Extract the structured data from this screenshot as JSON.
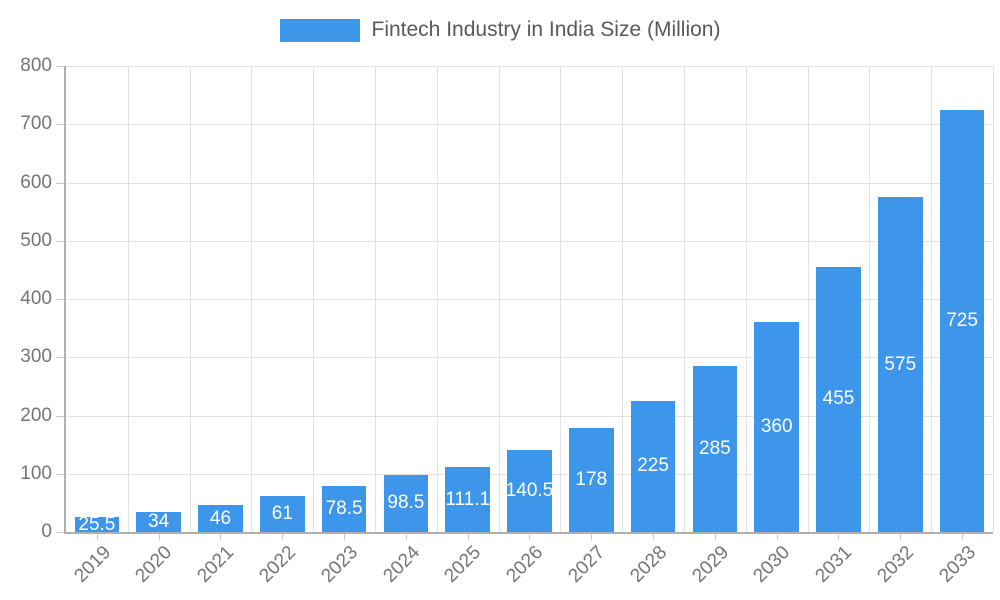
{
  "legend": {
    "label": "Fintech Industry in India Size (Million)"
  },
  "colors": {
    "bar": "#3d96e9",
    "grid": "#e2e2e2",
    "axis_line": "#b0b0b0",
    "tick": "#c9c9c9",
    "axis_text": "#757575",
    "legend_text": "#58595b",
    "value_label": "#ffffff"
  },
  "chart_data": {
    "type": "bar",
    "title": "",
    "xlabel": "",
    "ylabel": "",
    "categories": [
      "2019",
      "2020",
      "2021",
      "2022",
      "2023",
      "2024",
      "2025",
      "2026",
      "2027",
      "2028",
      "2029",
      "2030",
      "2031",
      "2032",
      "2033"
    ],
    "series": [
      {
        "name": "Fintech Industry in India Size (Million)",
        "values": [
          25.5,
          34,
          46,
          61,
          78.5,
          98.5,
          111.1,
          140.5,
          178,
          225,
          285,
          360,
          455,
          575,
          725
        ],
        "value_labels": [
          "25.5",
          "34",
          "46",
          "61",
          "78.5",
          "98.5",
          "111.1",
          "140.5",
          "178",
          "225",
          "285",
          "360",
          "455",
          "575",
          "725"
        ]
      }
    ],
    "ylim": [
      0,
      800
    ],
    "yticks": [
      0,
      100,
      200,
      300,
      400,
      500,
      600,
      700,
      800
    ],
    "grid": true,
    "legend_position": "top",
    "x_label_rotation": -45,
    "bar_color": "#3d96e9",
    "value_label_color": "#ffffff",
    "value_label_position": "center"
  }
}
